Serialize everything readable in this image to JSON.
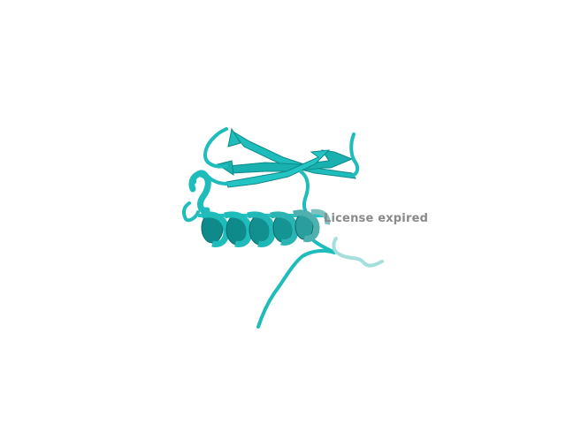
{
  "viewer": {
    "watermark_text": "License expired",
    "background_color": "#ffffff",
    "structure_color": "#1fbcbc",
    "structure_dark_color": "#0e8a8a",
    "structure_faded_color": "#a6dede",
    "watermark_color": "#8a8a8a",
    "representation": "cartoon"
  }
}
